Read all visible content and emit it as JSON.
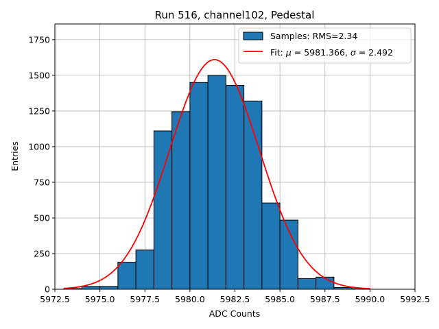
{
  "chart_data": {
    "type": "bar",
    "title": "Run 516, channel102, Pedestal",
    "xlabel": "ADC Counts",
    "ylabel": "Entries",
    "xlim": [
      5972.5,
      5992.5
    ],
    "ylim": [
      0,
      1860
    ],
    "xticks": [
      5972.5,
      5975.0,
      5977.5,
      5980.0,
      5982.5,
      5985.0,
      5987.5,
      5990.0,
      5992.5
    ],
    "xtick_labels": [
      "5972.5",
      "5975.0",
      "5977.5",
      "5980.0",
      "5982.5",
      "5985.0",
      "5987.5",
      "5990.0",
      "5992.5"
    ],
    "yticks": [
      0,
      250,
      500,
      750,
      1000,
      1250,
      1500,
      1750
    ],
    "ytick_labels": [
      "0",
      "250",
      "500",
      "750",
      "1000",
      "1250",
      "1500",
      "1750"
    ],
    "grid": true,
    "legend_position": "top-right",
    "histogram": {
      "name": "Samples: RMS=2.34",
      "bin_edges": [
        5973,
        5974,
        5975,
        5976,
        5977,
        5978,
        5979,
        5980,
        5981,
        5982,
        5983,
        5984,
        5985,
        5986,
        5987,
        5988,
        5989,
        5990
      ],
      "counts": [
        5,
        20,
        20,
        190,
        275,
        1110,
        1245,
        1450,
        1500,
        1430,
        1320,
        605,
        485,
        75,
        85,
        12,
        4
      ],
      "color": "#1f77b4",
      "edge_color": "#000000"
    },
    "fit": {
      "label_parts": [
        "Fit: ",
        "μ",
        " = 5981.366, ",
        "σ",
        " = 2.492"
      ],
      "mu": 5981.366,
      "sigma": 2.492,
      "amplitude": 1610,
      "x_range": [
        5973,
        5990
      ],
      "color": "#ff0000"
    }
  }
}
